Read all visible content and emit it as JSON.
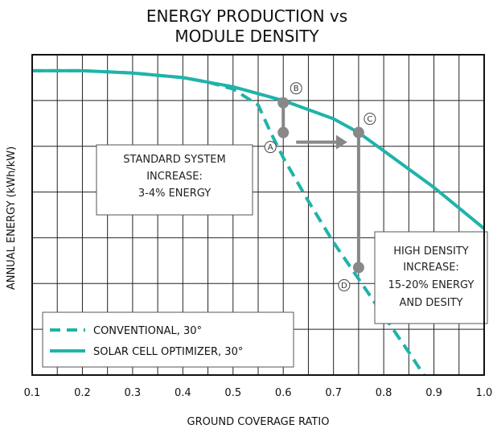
{
  "chart_data": {
    "type": "line",
    "title_lines": [
      "ENERGY PRODUCTION vs",
      "MODULE DENSITY"
    ],
    "xlabel": "GROUND COVERAGE RATIO",
    "ylabel": "ANNUAL ENERGY (kWh/kW)",
    "xlim": [
      0.1,
      1.0
    ],
    "ylim": [
      0,
      7
    ],
    "grid": true,
    "legend_position": "bottom-left",
    "x_ticks": [
      "0.1",
      "0.2",
      "0.3",
      "0.4",
      "0.5",
      "0.6",
      "0.7",
      "0.8",
      "0.9",
      "1.0"
    ],
    "series": [
      {
        "name": "CONVENTIONAL, 30°",
        "style": "dashed",
        "color": "#1fb3aa",
        "x": [
          0.1,
          0.2,
          0.3,
          0.4,
          0.45,
          0.5,
          0.55,
          0.575,
          0.6,
          0.65,
          0.7,
          0.75,
          0.8,
          0.85,
          0.88
        ],
        "y": [
          6.65,
          6.65,
          6.6,
          6.5,
          6.4,
          6.25,
          5.9,
          5.3,
          4.75,
          3.8,
          2.9,
          2.1,
          1.3,
          0.5,
          0.0
        ]
      },
      {
        "name": "SOLAR CELL OPTIMIZER, 30°",
        "style": "solid",
        "color": "#1fb3aa",
        "x": [
          0.1,
          0.2,
          0.3,
          0.4,
          0.5,
          0.6,
          0.7,
          0.75,
          0.8,
          0.9,
          1.0
        ],
        "y": [
          6.65,
          6.65,
          6.6,
          6.5,
          6.3,
          6.0,
          5.6,
          5.3,
          4.9,
          4.1,
          3.2
        ]
      }
    ],
    "points": [
      {
        "label": "A",
        "x": 0.6,
        "y": 5.3
      },
      {
        "label": "B",
        "x": 0.6,
        "y": 5.95
      },
      {
        "label": "C",
        "x": 0.75,
        "y": 5.3
      },
      {
        "label": "D",
        "x": 0.75,
        "y": 2.35
      }
    ],
    "annotations": [
      {
        "lines": [
          "STANDARD SYSTEM",
          "INCREASE:",
          "3-4% ENERGY"
        ]
      },
      {
        "lines": [
          "HIGH DENSITY",
          "INCREASE:",
          "15-20% ENERGY",
          "AND DESITY"
        ]
      }
    ],
    "colors": {
      "series": "#1fb3aa",
      "marker": "#888888"
    }
  }
}
